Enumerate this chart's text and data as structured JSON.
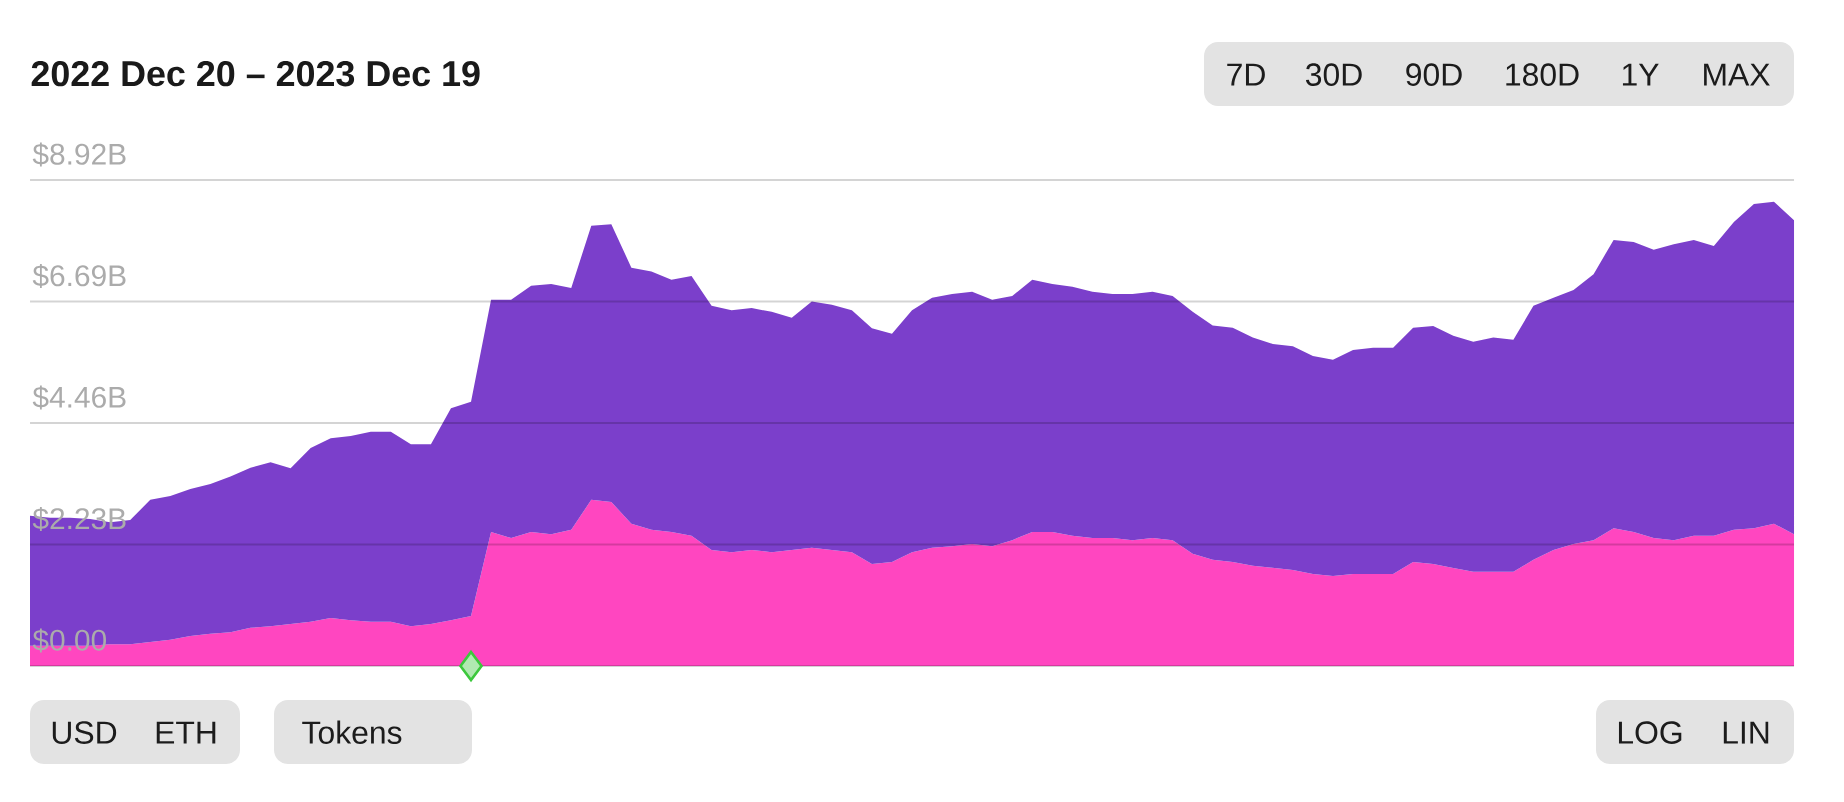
{
  "chart_data": {
    "type": "area",
    "title": "2022 Dec 20 – 2023 Dec 19",
    "stacked": true,
    "grid": "y",
    "ylim": [
      0,
      8.92
    ],
    "yticks": [
      {
        "value": 0,
        "label": "$0.00"
      },
      {
        "value": 2.23,
        "label": "$2.23B"
      },
      {
        "value": 4.46,
        "label": "$4.46B"
      },
      {
        "value": 6.69,
        "label": "$6.69B"
      },
      {
        "value": 8.92,
        "label": "$8.92B"
      }
    ],
    "categories": [
      null,
      null,
      null,
      null,
      null,
      null,
      null,
      null,
      null,
      null,
      null,
      null,
      null,
      null,
      null,
      null,
      null,
      null,
      null,
      null,
      null,
      null,
      null,
      null,
      null,
      null,
      null,
      null,
      null,
      null,
      null,
      null,
      null,
      null,
      null,
      null,
      null,
      null,
      null,
      null,
      null,
      null,
      null,
      null,
      null,
      null,
      null,
      null,
      null,
      null,
      null,
      null,
      null,
      null,
      null,
      null,
      null,
      null,
      null,
      null,
      null,
      null,
      null,
      null,
      null,
      null,
      null,
      null,
      null,
      null,
      null,
      null,
      null,
      null,
      null,
      null,
      null,
      null,
      null,
      null,
      null,
      null,
      null,
      null,
      null,
      null,
      null,
      null,
      null
    ],
    "series": [
      {
        "color": "#ff46c0",
        "values": [
          0.37,
          0.37,
          0.37,
          0.37,
          0.4,
          0.4,
          0.44,
          0.48,
          0.55,
          0.59,
          0.62,
          0.7,
          0.73,
          0.77,
          0.81,
          0.88,
          0.84,
          0.81,
          0.81,
          0.73,
          0.77,
          0.84,
          0.92,
          2.46,
          2.35,
          2.46,
          2.42,
          2.5,
          3.05,
          3.01,
          2.61,
          2.5,
          2.46,
          2.39,
          2.13,
          2.09,
          2.13,
          2.09,
          2.13,
          2.17,
          2.13,
          2.09,
          1.87,
          1.91,
          2.09,
          2.17,
          2.2,
          2.24,
          2.2,
          2.31,
          2.46,
          2.46,
          2.39,
          2.35,
          2.35,
          2.31,
          2.35,
          2.31,
          2.06,
          1.95,
          1.91,
          1.84,
          1.8,
          1.76,
          1.69,
          1.65,
          1.69,
          1.69,
          1.69,
          1.91,
          1.87,
          1.8,
          1.73,
          1.73,
          1.73,
          1.95,
          2.13,
          2.24,
          2.31,
          2.53,
          2.46,
          2.35,
          2.31,
          2.39,
          2.39,
          2.5,
          2.53,
          2.61,
          2.42
        ]
      },
      {
        "color": "#7b3fcb",
        "values": [
          2.39,
          2.35,
          2.35,
          2.33,
          2.24,
          2.28,
          2.61,
          2.64,
          2.7,
          2.75,
          2.86,
          2.94,
          3.01,
          2.86,
          3.19,
          3.3,
          3.38,
          3.49,
          3.49,
          3.34,
          3.3,
          3.89,
          3.93,
          4.26,
          4.37,
          4.52,
          4.59,
          4.44,
          5.03,
          5.1,
          4.7,
          4.74,
          4.63,
          4.77,
          4.48,
          4.44,
          4.44,
          4.41,
          4.26,
          4.52,
          4.5,
          4.44,
          4.33,
          4.19,
          4.44,
          4.59,
          4.63,
          4.63,
          4.52,
          4.48,
          4.63,
          4.55,
          4.57,
          4.52,
          4.48,
          4.52,
          4.52,
          4.48,
          4.44,
          4.3,
          4.3,
          4.19,
          4.11,
          4.11,
          4.0,
          3.97,
          4.11,
          4.15,
          4.15,
          4.3,
          4.37,
          4.26,
          4.22,
          4.3,
          4.26,
          4.66,
          4.63,
          4.66,
          4.88,
          5.29,
          5.32,
          5.29,
          5.43,
          5.43,
          5.32,
          5.65,
          5.95,
          5.91,
          5.76
        ]
      },
      {
        "type": "scatter",
        "marker": "diamond",
        "color": "#3cc83c",
        "values": [
          null,
          null,
          null,
          null,
          null,
          null,
          null,
          null,
          null,
          null,
          null,
          null,
          null,
          null,
          null,
          null,
          null,
          null,
          null,
          null,
          null,
          null,
          0,
          null,
          null,
          null,
          null,
          null,
          null,
          null,
          null,
          null,
          null,
          null,
          null,
          null,
          null,
          null,
          null,
          null,
          null,
          null,
          null,
          null,
          null,
          null,
          null,
          null,
          null,
          null,
          null,
          null,
          null,
          null,
          null,
          null,
          null,
          null,
          null,
          null,
          null,
          null,
          null,
          null,
          null,
          null,
          null,
          null,
          null,
          null,
          null,
          null,
          null,
          null,
          null,
          null,
          null,
          null,
          null,
          null,
          null,
          null,
          null,
          null,
          null,
          null,
          null,
          null,
          null
        ]
      }
    ],
    "annotations": [
      "7D",
      "30D",
      "90D",
      "180D",
      "1Y",
      "MAX",
      "USD",
      "ETH",
      "Tokens",
      "LOG",
      "LIN"
    ]
  }
}
